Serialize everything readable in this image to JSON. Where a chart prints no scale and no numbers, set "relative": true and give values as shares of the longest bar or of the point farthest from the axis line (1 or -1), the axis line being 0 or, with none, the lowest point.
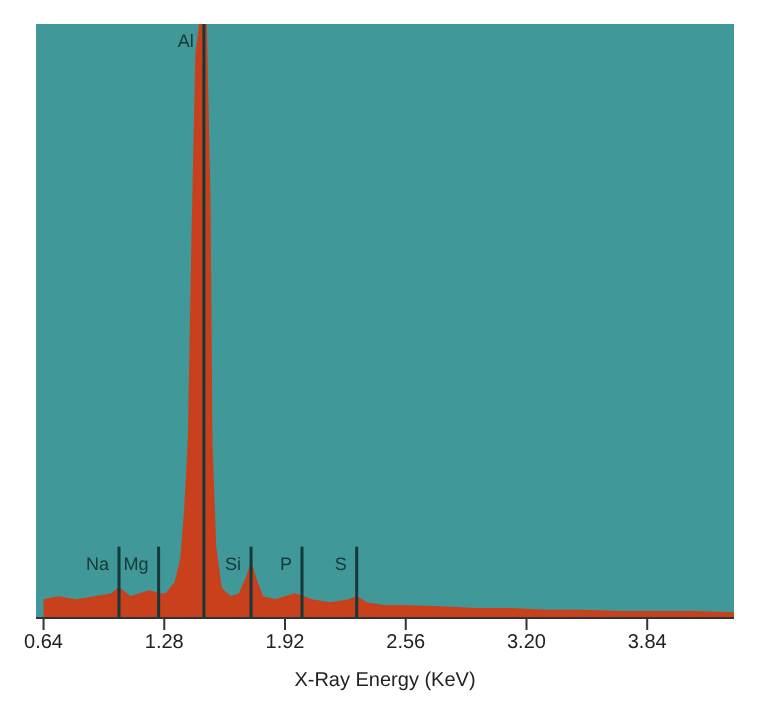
{
  "chart_data": {
    "type": "area",
    "relative": true,
    "xlabel": "X-Ray Energy (KeV)",
    "xlim": [
      0.6,
      4.3
    ],
    "xticks": [
      {
        "value": 0.64,
        "label": "0.64"
      },
      {
        "value": 1.28,
        "label": "1.28"
      },
      {
        "value": 1.92,
        "label": "1.92"
      },
      {
        "value": 2.56,
        "label": "2.56"
      },
      {
        "value": 3.2,
        "label": "3.20"
      },
      {
        "value": 3.84,
        "label": "3.84"
      }
    ],
    "legend": false,
    "series": [
      {
        "color": "#c8401c",
        "x": [
          0.64,
          0.72,
          0.81,
          0.91,
          1.0,
          1.04,
          1.1,
          1.2,
          1.26,
          1.29,
          1.34,
          1.37,
          1.39,
          1.41,
          1.43,
          1.45,
          1.47,
          1.5,
          1.52,
          1.53,
          1.55,
          1.58,
          1.63,
          1.68,
          1.72,
          1.74,
          1.77,
          1.8,
          1.87,
          1.97,
          2.02,
          2.06,
          2.16,
          2.26,
          2.3,
          2.35,
          2.45,
          2.54,
          2.74,
          2.93,
          3.12,
          3.31,
          3.5,
          3.7,
          3.89,
          4.08,
          4.3
        ],
        "values": [
          0.03,
          0.035,
          0.03,
          0.035,
          0.04,
          0.05,
          0.035,
          0.045,
          0.04,
          0.04,
          0.06,
          0.1,
          0.18,
          0.3,
          0.65,
          0.95,
          1,
          1,
          0.7,
          0.3,
          0.12,
          0.05,
          0.035,
          0.04,
          0.07,
          0.09,
          0.06,
          0.035,
          0.03,
          0.04,
          0.035,
          0.03,
          0.025,
          0.03,
          0.035,
          0.025,
          0.02,
          0.02,
          0.018,
          0.015,
          0.015,
          0.012,
          0.012,
          0.01,
          0.01,
          0.01,
          0.008
        ]
      }
    ],
    "ref_lines": [
      {
        "axis": "x",
        "value": 1.04,
        "label": "Na"
      },
      {
        "axis": "x",
        "value": 1.25,
        "label": "Mg"
      },
      {
        "axis": "x",
        "value": 1.49,
        "label": "Al"
      },
      {
        "axis": "x",
        "value": 1.74,
        "label": "Si"
      },
      {
        "axis": "x",
        "value": 2.01,
        "label": "P"
      },
      {
        "axis": "x",
        "value": 2.3,
        "label": "S"
      }
    ]
  }
}
